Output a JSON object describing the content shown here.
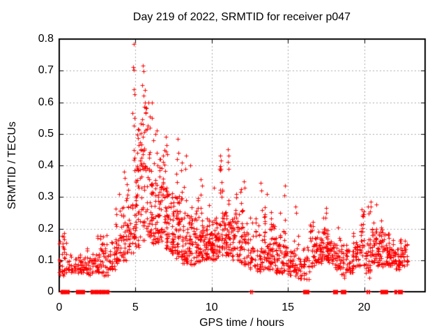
{
  "chart": {
    "title": "Day 219 of 2022, SRMTID for receiver p047",
    "xlabel": "GPS time / hours",
    "ylabel": "SRMTID / TECUs"
  },
  "chart_data": {
    "type": "scatter",
    "title": "Day 219 of 2022, SRMTID for receiver p047",
    "xlabel": "GPS time / hours",
    "ylabel": "SRMTID / TECUs",
    "xlim": [
      0,
      24
    ],
    "ylim": [
      0,
      0.8
    ],
    "xticks": [
      {
        "v": 0,
        "label": "0"
      },
      {
        "v": 5,
        "label": "5"
      },
      {
        "v": 10,
        "label": "10"
      },
      {
        "v": 15,
        "label": "15"
      },
      {
        "v": 20,
        "label": "20"
      }
    ],
    "yticks": [
      {
        "v": 0,
        "label": "0"
      },
      {
        "v": 0.1,
        "label": "0.1"
      },
      {
        "v": 0.2,
        "label": "0.2"
      },
      {
        "v": 0.3,
        "label": "0.3"
      },
      {
        "v": 0.4,
        "label": "0.4"
      },
      {
        "v": 0.5,
        "label": "0.5"
      },
      {
        "v": 0.6,
        "label": "0.6"
      },
      {
        "v": 0.7,
        "label": "0.7"
      },
      {
        "v": 0.8,
        "label": "0.8"
      }
    ],
    "grid": true,
    "legend": "none",
    "marker": {
      "shape": "plus",
      "color": "#ff0000",
      "size": 7
    },
    "grid_color": "#a8a8a8",
    "axis_color": "#000000",
    "seed": 1234,
    "density_bins": [
      [
        0.0,
        0.4,
        0.05,
        0.19,
        26
      ],
      [
        0.4,
        0.8,
        0.06,
        0.17,
        16
      ],
      [
        0.8,
        1.2,
        0.06,
        0.14,
        14
      ],
      [
        1.2,
        1.65,
        0.06,
        0.16,
        30
      ],
      [
        1.65,
        2.05,
        0.05,
        0.14,
        22
      ],
      [
        2.05,
        2.45,
        0.06,
        0.15,
        18
      ],
      [
        2.45,
        2.85,
        0.06,
        0.2,
        26
      ],
      [
        2.85,
        3.25,
        0.05,
        0.21,
        24
      ],
      [
        3.25,
        3.65,
        0.07,
        0.26,
        28
      ],
      [
        3.65,
        4.05,
        0.09,
        0.32,
        34
      ],
      [
        4.05,
        4.45,
        0.1,
        0.4,
        38
      ],
      [
        4.45,
        4.85,
        0.12,
        0.45,
        40
      ],
      [
        4.85,
        5.25,
        0.14,
        0.58,
        46
      ],
      [
        5.25,
        5.65,
        0.16,
        0.62,
        44
      ],
      [
        5.65,
        6.05,
        0.17,
        0.6,
        44
      ],
      [
        6.05,
        6.45,
        0.15,
        0.55,
        44
      ],
      [
        6.45,
        6.85,
        0.15,
        0.46,
        44
      ],
      [
        6.85,
        7.25,
        0.13,
        0.48,
        44
      ],
      [
        7.25,
        7.65,
        0.12,
        0.43,
        42
      ],
      [
        7.65,
        8.05,
        0.1,
        0.47,
        40
      ],
      [
        8.05,
        8.45,
        0.08,
        0.42,
        36
      ],
      [
        8.45,
        8.85,
        0.08,
        0.33,
        38
      ],
      [
        8.85,
        9.25,
        0.09,
        0.33,
        40
      ],
      [
        9.25,
        9.65,
        0.1,
        0.36,
        40
      ],
      [
        9.65,
        10.05,
        0.1,
        0.31,
        44
      ],
      [
        10.05,
        10.45,
        0.1,
        0.38,
        44
      ],
      [
        10.45,
        10.85,
        0.11,
        0.43,
        44
      ],
      [
        10.85,
        11.25,
        0.11,
        0.45,
        44
      ],
      [
        11.25,
        11.65,
        0.1,
        0.38,
        40
      ],
      [
        11.65,
        12.05,
        0.09,
        0.34,
        40
      ],
      [
        12.05,
        12.45,
        0.08,
        0.35,
        34
      ],
      [
        12.45,
        12.85,
        0.07,
        0.28,
        28
      ],
      [
        12.85,
        13.25,
        0.06,
        0.3,
        30
      ],
      [
        13.25,
        13.65,
        0.07,
        0.32,
        34
      ],
      [
        13.65,
        14.05,
        0.07,
        0.28,
        34
      ],
      [
        14.05,
        14.45,
        0.06,
        0.25,
        32
      ],
      [
        14.45,
        14.85,
        0.06,
        0.3,
        30
      ],
      [
        14.85,
        15.25,
        0.05,
        0.18,
        28
      ],
      [
        15.25,
        15.65,
        0.05,
        0.22,
        24
      ],
      [
        15.65,
        16.05,
        0.04,
        0.18,
        24
      ],
      [
        16.05,
        16.45,
        0.04,
        0.2,
        22
      ],
      [
        16.45,
        16.85,
        0.08,
        0.23,
        34
      ],
      [
        16.85,
        17.25,
        0.09,
        0.24,
        38
      ],
      [
        17.25,
        17.65,
        0.1,
        0.27,
        40
      ],
      [
        17.65,
        18.05,
        0.09,
        0.24,
        34
      ],
      [
        18.05,
        18.45,
        0.07,
        0.24,
        28
      ],
      [
        18.45,
        18.85,
        0.05,
        0.19,
        24
      ],
      [
        18.85,
        19.25,
        0.06,
        0.19,
        26
      ],
      [
        19.25,
        19.65,
        0.08,
        0.22,
        30
      ],
      [
        19.65,
        20.05,
        0.08,
        0.26,
        30
      ],
      [
        20.05,
        20.45,
        0.06,
        0.29,
        30
      ],
      [
        20.45,
        20.85,
        0.09,
        0.28,
        36
      ],
      [
        20.85,
        21.25,
        0.08,
        0.24,
        34
      ],
      [
        21.25,
        21.65,
        0.08,
        0.22,
        34
      ],
      [
        21.65,
        22.05,
        0.08,
        0.2,
        30
      ],
      [
        22.05,
        22.45,
        0.07,
        0.18,
        26
      ],
      [
        22.45,
        22.85,
        0.08,
        0.19,
        28
      ]
    ],
    "peak_points": [
      [
        4.87,
        0.785
      ],
      [
        4.84,
        0.712
      ],
      [
        4.9,
        0.703
      ],
      [
        4.87,
        0.64
      ],
      [
        4.92,
        0.625
      ],
      [
        4.8,
        0.565
      ],
      [
        4.95,
        0.55
      ],
      [
        4.88,
        0.525
      ],
      [
        5.5,
        0.715
      ],
      [
        5.55,
        0.698
      ],
      [
        5.46,
        0.655
      ],
      [
        5.6,
        0.638
      ],
      [
        5.52,
        0.622
      ],
      [
        5.63,
        0.6
      ],
      [
        5.56,
        0.585
      ],
      [
        5.68,
        0.565
      ],
      [
        5.45,
        0.545
      ],
      [
        5.85,
        0.598
      ],
      [
        5.92,
        0.555
      ],
      [
        5.95,
        0.52
      ],
      [
        6.1,
        0.6
      ],
      [
        6.07,
        0.55
      ],
      [
        6.15,
        0.48
      ],
      [
        6.3,
        0.5
      ],
      [
        7.0,
        0.49
      ],
      [
        7.05,
        0.465
      ],
      [
        6.98,
        0.445
      ],
      [
        7.1,
        0.435
      ],
      [
        7.78,
        0.485
      ],
      [
        7.82,
        0.44
      ],
      [
        7.72,
        0.42
      ],
      [
        8.3,
        0.43
      ],
      [
        8.27,
        0.39
      ],
      [
        8.6,
        0.4
      ],
      [
        9.3,
        0.355
      ],
      [
        9.35,
        0.335
      ],
      [
        10.15,
        0.33
      ],
      [
        10.55,
        0.43
      ],
      [
        10.6,
        0.415
      ],
      [
        10.5,
        0.39
      ],
      [
        11.08,
        0.45
      ],
      [
        11.1,
        0.43
      ],
      [
        11.05,
        0.41
      ],
      [
        11.12,
        0.39
      ],
      [
        12.1,
        0.35
      ],
      [
        12.15,
        0.33
      ],
      [
        13.23,
        0.345
      ],
      [
        13.25,
        0.32
      ],
      [
        13.6,
        0.31
      ],
      [
        14.8,
        0.335
      ],
      [
        14.78,
        0.305
      ],
      [
        15.5,
        0.27
      ],
      [
        15.55,
        0.25
      ],
      [
        16.65,
        0.22
      ],
      [
        17.5,
        0.265
      ],
      [
        17.53,
        0.25
      ],
      [
        17.47,
        0.235
      ],
      [
        19.85,
        0.26
      ],
      [
        19.88,
        0.24
      ],
      [
        20.42,
        0.285
      ],
      [
        20.45,
        0.27
      ],
      [
        20.38,
        0.255
      ],
      [
        0.3,
        0.185
      ],
      [
        0.32,
        0.165
      ],
      [
        3.95,
        0.31
      ],
      [
        4.25,
        0.38
      ],
      [
        4.28,
        0.36
      ],
      [
        20.35,
        0.045
      ],
      [
        18.7,
        0.045
      ]
    ],
    "zero_segments": [
      [
        0.1,
        0.5
      ],
      [
        0.55,
        0.65
      ],
      [
        1.1,
        1.65
      ],
      [
        2.05,
        2.25
      ],
      [
        2.3,
        2.55
      ],
      [
        2.6,
        2.78
      ],
      [
        2.82,
        3.0
      ],
      [
        3.08,
        3.28
      ],
      [
        12.53,
        12.56
      ],
      [
        12.65,
        12.68
      ],
      [
        16.0,
        16.36
      ],
      [
        17.95,
        18.26
      ],
      [
        18.49,
        18.79
      ],
      [
        20.16,
        20.2
      ],
      [
        20.3,
        20.35
      ],
      [
        21.06,
        21.52
      ],
      [
        21.97,
        22.12
      ],
      [
        22.2,
        22.5
      ]
    ]
  }
}
